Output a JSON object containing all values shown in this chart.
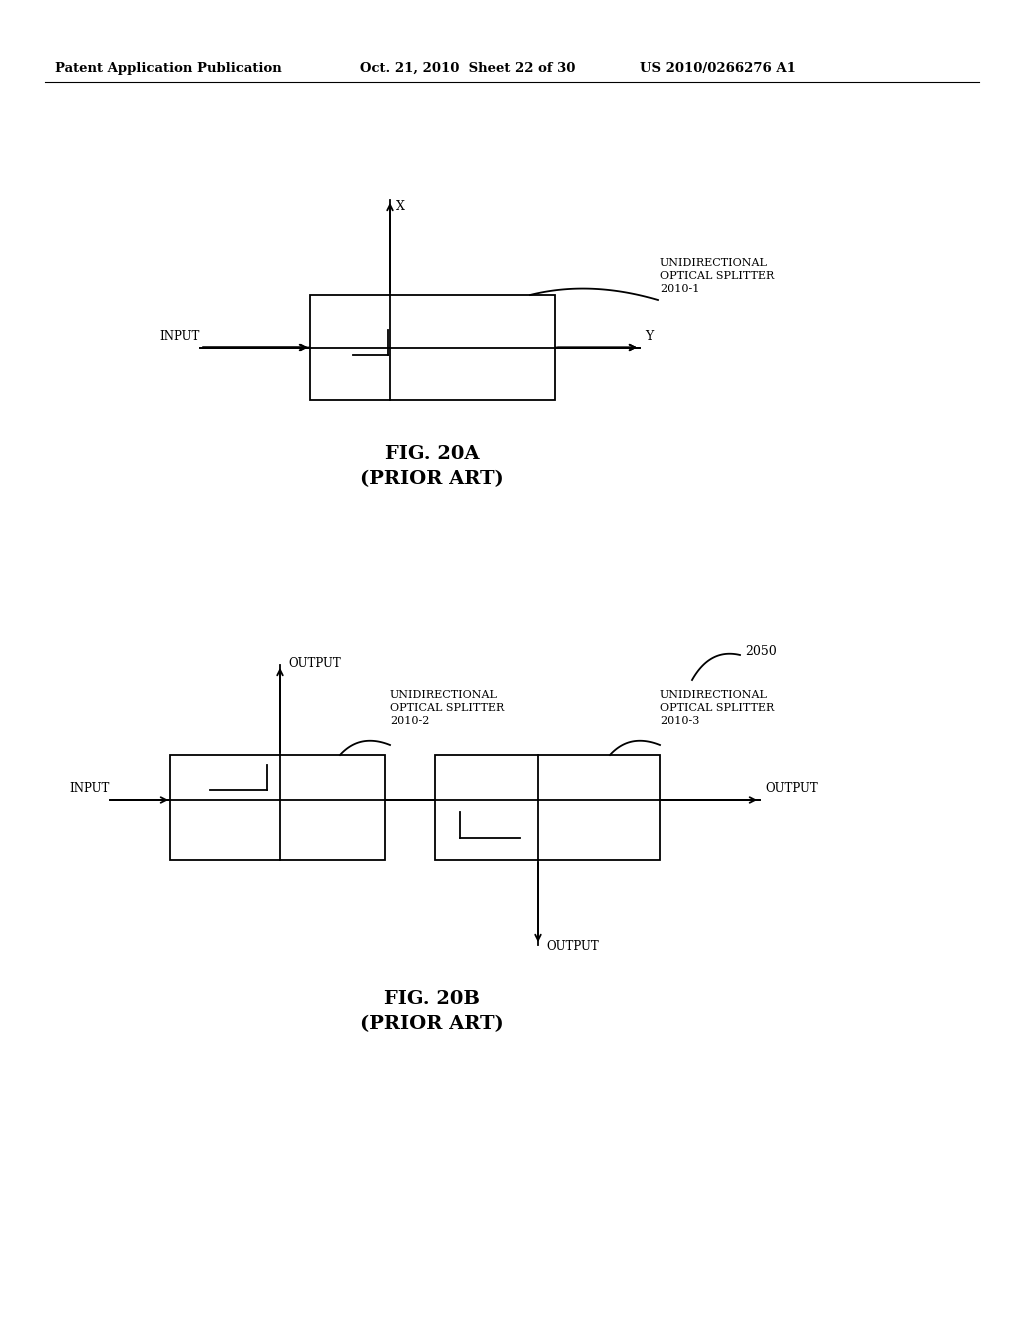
{
  "bg_color": "#ffffff",
  "text_color": "#000000",
  "line_color": "#000000",
  "header_left": "Patent Application Publication",
  "header_mid": "Oct. 21, 2010  Sheet 22 of 30",
  "header_right": "US 2010/0266276 A1",
  "fig20a_caption": "FIG. 20A",
  "fig20a_subcaption": "(PRIOR ART)",
  "fig20b_caption": "FIG. 20B",
  "fig20b_subcaption": "(PRIOR ART)",
  "label_input_20a": "INPUT",
  "label_x_20a": "X",
  "label_y_20a": "Y",
  "label_unidirectional_20a_line1": "UNIDIRECTIONAL",
  "label_unidirectional_20a_line2": "OPTICAL SPLITTER",
  "label_unidirectional_20a_line3": "2010-1",
  "label_input_20b": "INPUT",
  "label_output_20b_top": "OUTPUT",
  "label_output_20b_right": "OUTPUT",
  "label_output_20b_bottom": "OUTPUT",
  "label_uni_20b_left_line1": "UNIDIRECTIONAL",
  "label_uni_20b_left_line2": "OPTICAL SPLITTER",
  "label_uni_20b_left_line3": "2010-2",
  "label_uni_20b_right_line1": "UNIDIRECTIONAL",
  "label_uni_20b_right_line2": "OPTICAL SPLITTER",
  "label_uni_20b_right_line3": "2010-3",
  "label_2050": "2050"
}
